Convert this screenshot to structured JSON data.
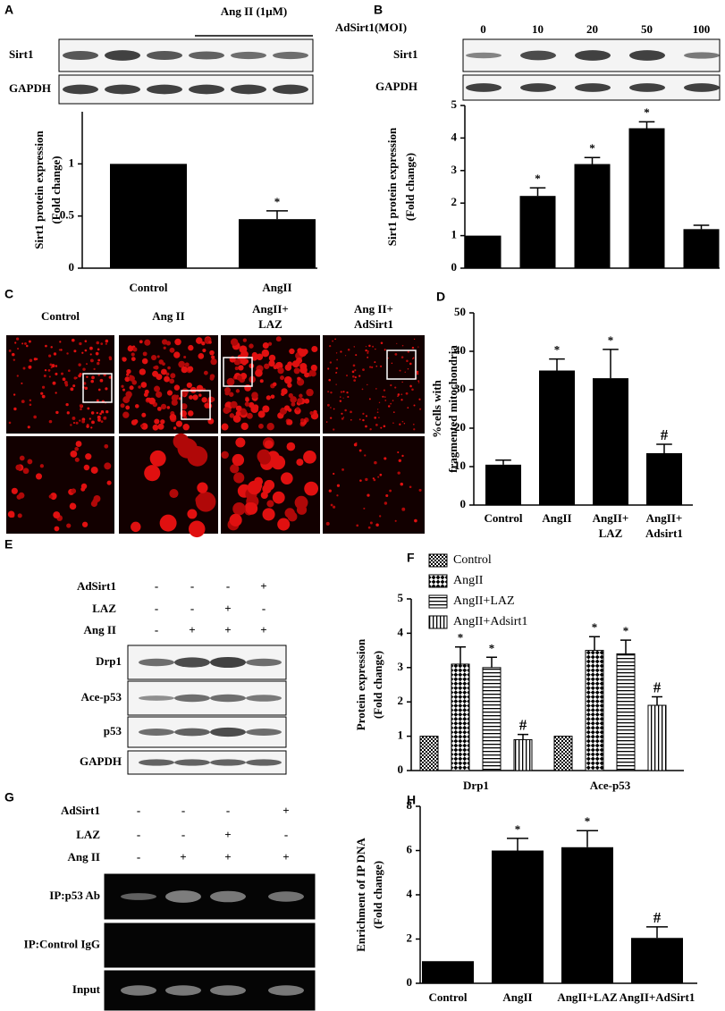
{
  "panel_labels": [
    "A",
    "B",
    "C",
    "D",
    "E",
    "F",
    "G",
    "H"
  ],
  "blot_a": {
    "treatment": "Ang II (1μM)",
    "rows": [
      "Sirt1",
      "GAPDH"
    ]
  },
  "blot_b": {
    "rows": [
      "Sirt1",
      "GAPDH"
    ]
  },
  "images_c": {
    "columns": [
      "Control",
      "Ang II",
      "AngII+ LAZ",
      "Ang II+ AdSirt1"
    ]
  },
  "blot_e": {
    "treatments": [
      {
        "name": "AdSirt1",
        "signs": [
          "-",
          "-",
          "-",
          "+"
        ]
      },
      {
        "name": "LAZ",
        "signs": [
          "-",
          "-",
          "+",
          "-"
        ]
      },
      {
        "name": "Ang II",
        "signs": [
          "-",
          "+",
          "+",
          "+"
        ]
      }
    ],
    "rows": [
      "Drp1",
      "Ace-p53",
      "p53",
      "GAPDH"
    ]
  },
  "gel_g": {
    "treatments": [
      {
        "name": "AdSirt1",
        "signs": [
          "-",
          "-",
          "-",
          "+"
        ]
      },
      {
        "name": "LAZ",
        "signs": [
          "-",
          "-",
          "+",
          "-"
        ]
      },
      {
        "name": "Ang II",
        "signs": [
          "-",
          "+",
          "+",
          "+"
        ]
      }
    ],
    "rows": [
      "IP:p53 Ab",
      "IP:Control IgG",
      "Input"
    ]
  },
  "chart_data": [
    {
      "type": "bar",
      "categories": [
        "Control",
        "AngII"
      ],
      "values": [
        1,
        0.47
      ],
      "errors": [
        null,
        0.08
      ],
      "significance": [
        null,
        "*"
      ],
      "ylabel": [
        "Sirt1 protein expression",
        "(Fold change)"
      ],
      "ylim": [
        0,
        1.5
      ],
      "yticks": [
        0,
        0.5,
        1
      ],
      "color": "#000000"
    },
    {
      "type": "bar",
      "xlabel": "AdSirt1(MOI)",
      "categories": [
        "0",
        "10",
        "20",
        "50",
        "100"
      ],
      "values": [
        1,
        2.22,
        3.2,
        4.3,
        1.2
      ],
      "errors": [
        null,
        0.25,
        0.2,
        0.2,
        0.12
      ],
      "significance": [
        null,
        "*",
        "*",
        "*",
        null
      ],
      "ylabel": [
        "Sirt1 protein expression",
        "(Fold change)"
      ],
      "ylim": [
        0,
        5
      ],
      "yticks": [
        0,
        1,
        2,
        3,
        4,
        5
      ],
      "color": "#000000"
    },
    {
      "type": "bar",
      "categories": [
        "Control",
        "AngII",
        "AngII+ LAZ",
        "AngII+ Adsirt1"
      ],
      "values": [
        10.5,
        35,
        33,
        13.5
      ],
      "errors": [
        1.2,
        3,
        7.5,
        2.3
      ],
      "significance": [
        null,
        "*",
        "*",
        "#"
      ],
      "ylabel": [
        "%cells with",
        "fragmented mitochondria"
      ],
      "ylim": [
        0,
        50
      ],
      "yticks": [
        0,
        10,
        20,
        30,
        40,
        50
      ],
      "color": "#000000"
    },
    {
      "type": "grouped_bar",
      "categories": [
        "Drp1",
        "Ace-p53"
      ],
      "series": [
        {
          "name": "Control",
          "pattern": "checker",
          "values": [
            1,
            1
          ],
          "errors": [
            null,
            null
          ],
          "significance": [
            null,
            null
          ]
        },
        {
          "name": "AngII",
          "pattern": "diamond",
          "values": [
            3.1,
            3.5
          ],
          "errors": [
            0.5,
            0.4
          ],
          "significance": [
            "*",
            "*"
          ]
        },
        {
          "name": "AngII+LAZ",
          "pattern": "hlines",
          "values": [
            3.0,
            3.4
          ],
          "errors": [
            0.3,
            0.4
          ],
          "significance": [
            "*",
            "*"
          ]
        },
        {
          "name": "AngII+Adsirt1",
          "pattern": "vlines",
          "values": [
            0.9,
            1.9
          ],
          "errors": [
            0.15,
            0.25
          ],
          "significance": [
            "#",
            "#"
          ]
        }
      ],
      "ylabel": [
        "Protein expression",
        "(Fold change)"
      ],
      "ylim": [
        0,
        5
      ],
      "yticks": [
        0,
        1,
        2,
        3,
        4,
        5
      ],
      "legend": "top-left"
    },
    {
      "type": "bar",
      "categories": [
        "Control",
        "AngII",
        "AngII+LAZ",
        "AngII+AdSirt1"
      ],
      "values": [
        1,
        6.0,
        6.15,
        2.05
      ],
      "errors": [
        null,
        0.55,
        0.75,
        0.5
      ],
      "significance": [
        null,
        "*",
        "*",
        "#"
      ],
      "ylabel": [
        "Enrichment of IP DNA",
        "(Fold change)"
      ],
      "ylim": [
        0,
        8
      ],
      "yticks": [
        0,
        2,
        4,
        6,
        8
      ],
      "color": "#000000"
    }
  ]
}
